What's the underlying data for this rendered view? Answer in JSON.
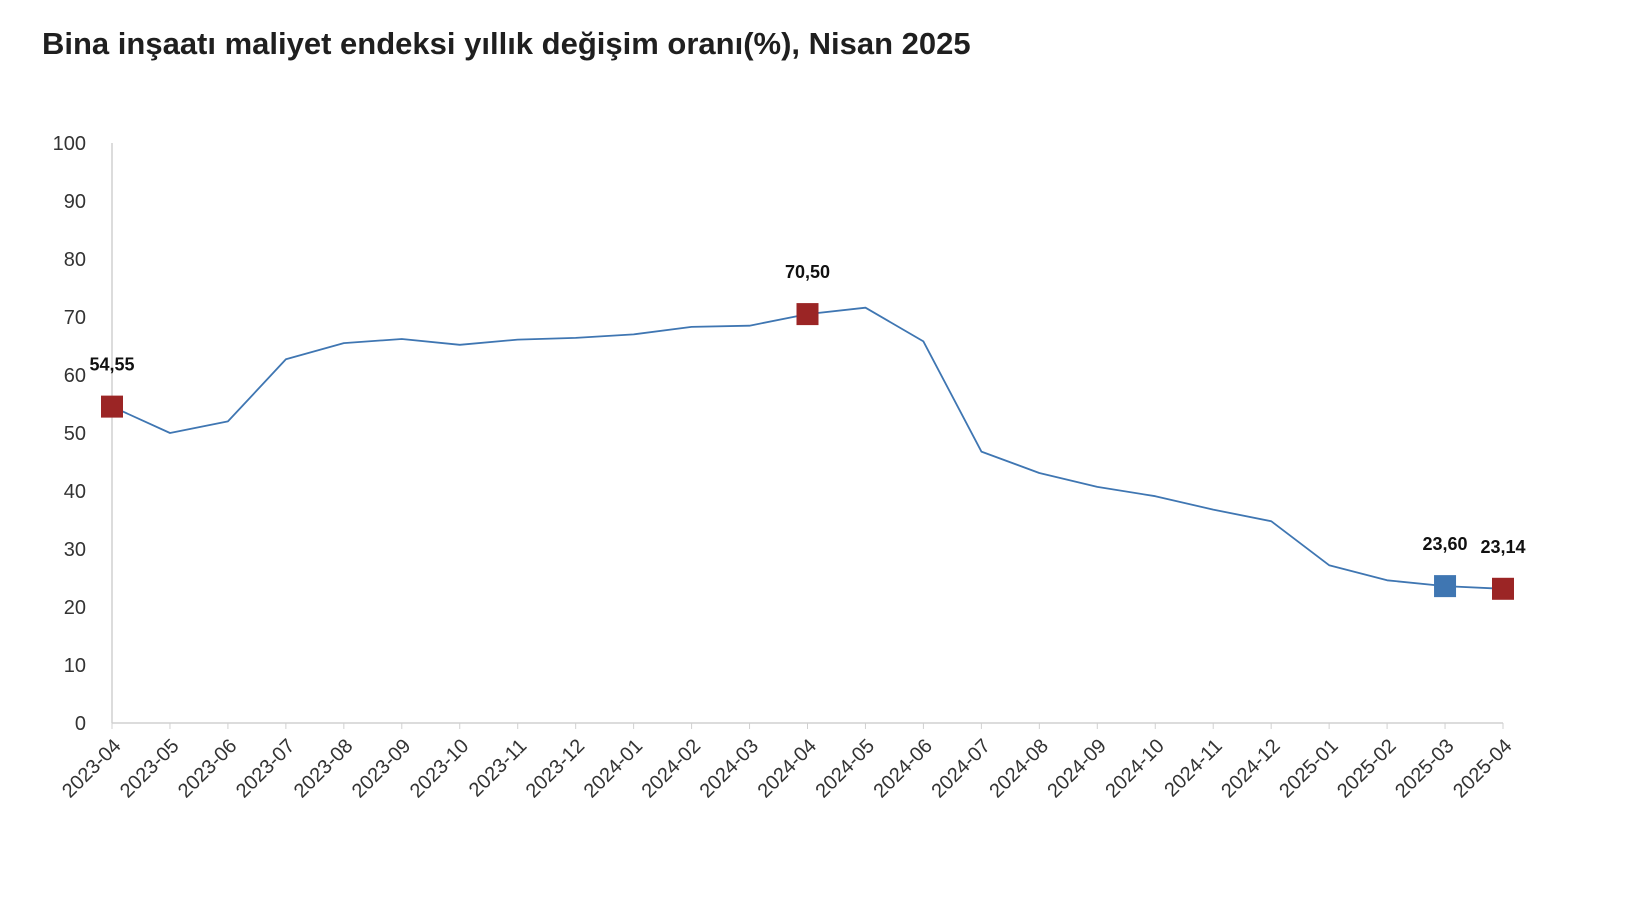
{
  "chart_data": {
    "type": "line",
    "title": "Bina inşaatı maliyet endeksi yıllık değişim oranı(%), Nisan 2025",
    "xlabel": "",
    "ylabel": "",
    "ylim": [
      0,
      100
    ],
    "yticks": [
      "0",
      "10",
      "20",
      "30",
      "40",
      "50",
      "60",
      "70",
      "80",
      "90",
      "100"
    ],
    "grid": false,
    "legend": "none",
    "categories": [
      "2023-04",
      "2023-05",
      "2023-06",
      "2023-07",
      "2023-08",
      "2023-09",
      "2023-10",
      "2023-11",
      "2023-12",
      "2024-01",
      "2024-02",
      "2024-03",
      "2024-04",
      "2024-05",
      "2024-06",
      "2024-07",
      "2024-08",
      "2024-09",
      "2024-10",
      "2024-11",
      "2024-12",
      "2025-01",
      "2025-02",
      "2025-03",
      "2025-04"
    ],
    "series": [
      {
        "values": [
          54.55,
          50.0,
          52.0,
          62.7,
          65.5,
          66.2,
          65.2,
          66.1,
          66.4,
          67.0,
          68.3,
          68.5,
          70.5,
          71.6,
          65.8,
          46.8,
          43.1,
          40.7,
          39.1,
          36.8,
          34.8,
          27.2,
          24.6,
          23.6,
          23.14
        ],
        "color": "#3f76b2"
      }
    ],
    "highlighted_points": [
      {
        "category": "2023-04",
        "value": 54.55,
        "label": "54,55",
        "color": "#9b2525"
      },
      {
        "category": "2024-04",
        "value": 70.5,
        "label": "70,50",
        "color": "#9b2525"
      },
      {
        "category": "2025-03",
        "value": 23.6,
        "label": "23,60",
        "color": "#3f76b2"
      },
      {
        "category": "2025-04",
        "value": 23.14,
        "label": "23,14",
        "color": "#9b2525"
      }
    ]
  },
  "colors": {
    "line": "#3f76b2",
    "highlight_red": "#9b2525",
    "highlight_blue": "#3f76b2",
    "axis": "#d0d0d0",
    "text": "#333333"
  }
}
